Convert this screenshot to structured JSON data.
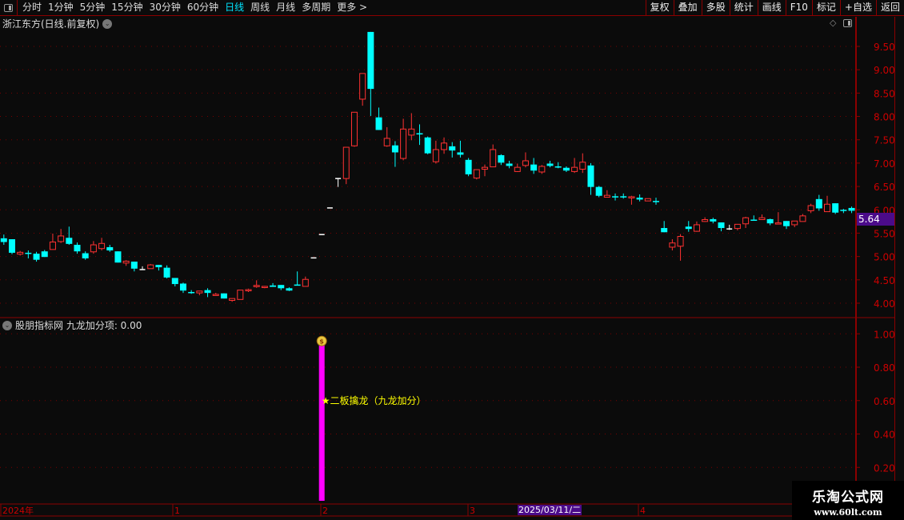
{
  "toolbar": {
    "periods": [
      "分时",
      "1分钟",
      "5分钟",
      "15分钟",
      "30分钟",
      "60分钟",
      "日线",
      "周线",
      "月线",
      "多周期",
      "更多 >"
    ],
    "active_period": "日线",
    "right_buttons": [
      "复权",
      "叠加",
      "多股",
      "统计",
      "画线",
      "F10",
      "标记",
      "+自选",
      "返回"
    ]
  },
  "main": {
    "title": "浙江东方(日线.前复权)",
    "current_price": "5.64",
    "price_ticks": [
      "9.50",
      "9.00",
      "8.50",
      "8.00",
      "7.50",
      "7.00",
      "6.50",
      "6.00",
      "5.50",
      "5.00",
      "4.50",
      "4.00"
    ]
  },
  "indicator": {
    "title": "股朋指标网 九龙加分项: 0.00",
    "ticks": [
      "1.00",
      "0.80",
      "0.60",
      "0.40",
      "0.20"
    ],
    "signal_label": "★二板擒龙（九龙加分）",
    "signal_value": 1.0,
    "bar_color": "#ff00ff"
  },
  "date_axis": {
    "labels": [
      "2024年",
      "1",
      "2",
      "3",
      "4"
    ],
    "cursor_date": "2025/03/11/二"
  },
  "watermark": {
    "line1": "乐淘公式网",
    "line2": "www.60lt.com"
  },
  "colors": {
    "up": "#ff3232",
    "down": "#00ffff",
    "flat": "#ffffff",
    "grid": "#7a0000",
    "axis_text": "#cc0000"
  },
  "chart_data": {
    "type": "candlestick",
    "ylim": [
      3.8,
      9.85
    ],
    "signal_index": 39,
    "candles": [
      [
        5.39,
        5.47,
        5.25,
        5.31
      ],
      [
        5.37,
        5.37,
        5.05,
        5.08
      ],
      [
        5.05,
        5.12,
        5.02,
        5.09
      ],
      [
        5.08,
        5.13,
        4.96,
        5.07
      ],
      [
        5.06,
        5.1,
        4.89,
        4.93
      ],
      [
        5.11,
        5.14,
        4.99,
        4.99
      ],
      [
        5.15,
        5.49,
        5.15,
        5.31
      ],
      [
        5.32,
        5.59,
        5.29,
        5.44
      ],
      [
        5.4,
        5.64,
        5.25,
        5.27
      ],
      [
        5.25,
        5.3,
        5.06,
        5.11
      ],
      [
        5.07,
        5.11,
        4.93,
        4.96
      ],
      [
        5.1,
        5.33,
        5.06,
        5.25
      ],
      [
        5.17,
        5.4,
        5.13,
        5.28
      ],
      [
        5.2,
        5.25,
        5.1,
        5.13
      ],
      [
        5.11,
        5.11,
        4.87,
        4.87
      ],
      [
        4.86,
        4.92,
        4.8,
        4.9
      ],
      [
        4.89,
        4.89,
        4.68,
        4.74
      ],
      [
        4.72,
        4.79,
        4.72,
        4.72
      ],
      [
        4.74,
        4.84,
        4.74,
        4.82
      ],
      [
        4.82,
        4.82,
        4.7,
        4.77
      ],
      [
        4.76,
        4.81,
        4.53,
        4.55
      ],
      [
        4.54,
        4.54,
        4.36,
        4.41
      ],
      [
        4.42,
        4.44,
        4.22,
        4.27
      ],
      [
        4.24,
        4.28,
        4.2,
        4.23
      ],
      [
        4.22,
        4.26,
        4.17,
        4.26
      ],
      [
        4.28,
        4.32,
        4.13,
        4.22
      ],
      [
        4.17,
        4.22,
        4.17,
        4.19
      ],
      [
        4.21,
        4.21,
        4.1,
        4.1
      ],
      [
        4.06,
        4.1,
        4.03,
        4.1
      ],
      [
        4.08,
        4.28,
        4.08,
        4.28
      ],
      [
        4.28,
        4.31,
        4.24,
        4.29
      ],
      [
        4.36,
        4.49,
        4.33,
        4.38
      ],
      [
        4.35,
        4.37,
        4.32,
        4.36
      ],
      [
        4.38,
        4.43,
        4.35,
        4.35
      ],
      [
        4.39,
        4.39,
        4.28,
        4.32
      ],
      [
        4.32,
        4.34,
        4.26,
        4.27
      ],
      [
        4.4,
        4.68,
        4.39,
        4.39
      ],
      [
        4.36,
        4.57,
        4.36,
        4.51
      ],
      [
        4.97,
        4.97,
        4.97,
        4.97
      ],
      [
        5.47,
        5.47,
        5.47,
        5.47
      ],
      [
        6.04,
        6.04,
        6.04,
        6.04
      ],
      [
        6.67,
        6.67,
        6.49,
        6.67
      ],
      [
        6.67,
        7.34,
        6.55,
        7.34
      ],
      [
        7.37,
        8.09,
        7.35,
        8.09
      ],
      [
        8.37,
        8.92,
        8.23,
        8.92
      ],
      [
        9.81,
        9.81,
        8.01,
        8.59
      ],
      [
        7.98,
        8.19,
        7.71,
        7.71
      ],
      [
        7.37,
        7.77,
        7.35,
        7.53
      ],
      [
        7.38,
        7.47,
        6.92,
        7.23
      ],
      [
        7.1,
        7.95,
        7.06,
        7.73
      ],
      [
        7.6,
        8.07,
        7.49,
        7.73
      ],
      [
        7.64,
        7.83,
        7.39,
        7.63
      ],
      [
        7.55,
        7.57,
        7.19,
        7.21
      ],
      [
        7.03,
        7.48,
        6.99,
        7.29
      ],
      [
        7.29,
        7.55,
        7.2,
        7.43
      ],
      [
        7.36,
        7.45,
        7.12,
        7.27
      ],
      [
        7.23,
        7.48,
        7.12,
        7.18
      ],
      [
        7.07,
        7.11,
        6.72,
        6.76
      ],
      [
        6.68,
        6.86,
        6.65,
        6.86
      ],
      [
        6.87,
        6.97,
        6.72,
        6.91
      ],
      [
        6.92,
        7.4,
        6.92,
        7.29
      ],
      [
        7.17,
        7.19,
        6.96,
        7.01
      ],
      [
        6.99,
        7.05,
        6.89,
        6.94
      ],
      [
        6.82,
        6.99,
        6.81,
        6.91
      ],
      [
        6.95,
        7.23,
        6.91,
        7.05
      ],
      [
        6.97,
        7.11,
        6.77,
        6.84
      ],
      [
        6.81,
        6.96,
        6.77,
        6.93
      ],
      [
        6.99,
        7.05,
        6.91,
        6.94
      ],
      [
        6.93,
        7.02,
        6.89,
        6.92
      ],
      [
        6.9,
        6.93,
        6.81,
        6.84
      ],
      [
        6.82,
        7.11,
        6.79,
        6.91
      ],
      [
        6.87,
        7.21,
        6.79,
        7.02
      ],
      [
        6.95,
        7.0,
        6.32,
        6.49
      ],
      [
        6.49,
        6.51,
        6.27,
        6.3
      ],
      [
        6.27,
        6.42,
        6.27,
        6.31
      ],
      [
        6.29,
        6.35,
        6.2,
        6.28
      ],
      [
        6.29,
        6.35,
        6.24,
        6.28
      ],
      [
        6.27,
        6.3,
        6.11,
        6.28
      ],
      [
        6.26,
        6.33,
        6.18,
        6.22
      ],
      [
        6.19,
        6.24,
        6.19,
        6.24
      ],
      [
        6.19,
        6.26,
        6.11,
        6.18
      ],
      [
        5.61,
        5.76,
        5.52,
        5.52
      ],
      [
        5.2,
        5.37,
        5.13,
        5.29
      ],
      [
        5.22,
        5.48,
        4.91,
        5.43
      ],
      [
        5.64,
        5.76,
        5.53,
        5.59
      ],
      [
        5.54,
        5.75,
        5.53,
        5.68
      ],
      [
        5.75,
        5.84,
        5.74,
        5.79
      ],
      [
        5.8,
        5.83,
        5.71,
        5.75
      ],
      [
        5.73,
        5.73,
        5.54,
        5.61
      ],
      [
        5.59,
        5.68,
        5.57,
        5.59
      ],
      [
        5.6,
        5.69,
        5.56,
        5.69
      ],
      [
        5.7,
        5.85,
        5.61,
        5.83
      ],
      [
        5.79,
        5.88,
        5.78,
        5.78
      ],
      [
        5.79,
        5.9,
        5.79,
        5.83
      ],
      [
        5.8,
        5.81,
        5.67,
        5.71
      ],
      [
        5.7,
        5.95,
        5.7,
        5.72
      ],
      [
        5.76,
        5.76,
        5.59,
        5.65
      ],
      [
        5.68,
        5.76,
        5.63,
        5.76
      ],
      [
        5.75,
        5.91,
        5.75,
        5.87
      ],
      [
        5.98,
        6.13,
        5.93,
        6.09
      ],
      [
        6.23,
        6.32,
        5.98,
        6.03
      ],
      [
        5.96,
        6.3,
        5.96,
        6.12
      ],
      [
        6.14,
        6.14,
        5.91,
        5.94
      ],
      [
        6.0,
        6.02,
        5.93,
        5.99
      ],
      [
        6.04,
        6.07,
        5.93,
        5.98
      ]
    ]
  }
}
